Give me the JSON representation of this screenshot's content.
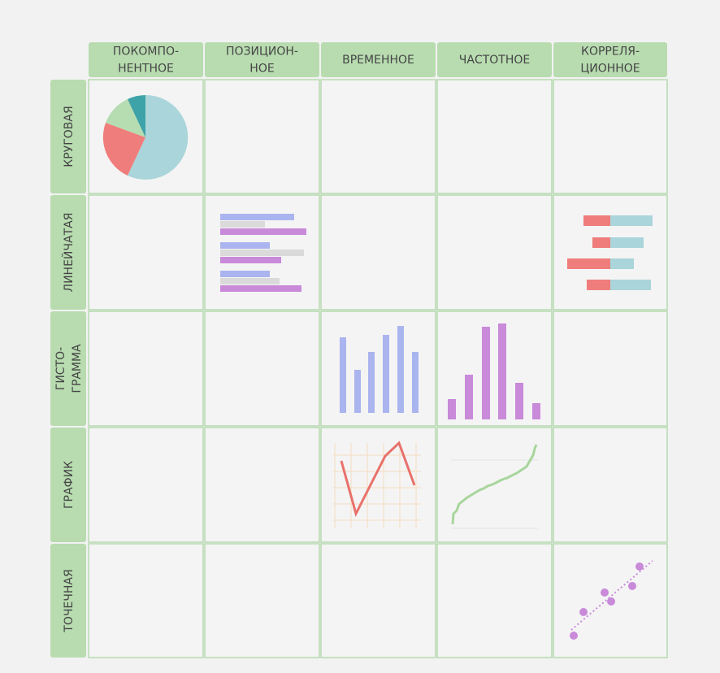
{
  "columns": [
    {
      "lines": [
        "ПОКОМПО-",
        "НЕНТНОЕ"
      ]
    },
    {
      "lines": [
        "ПОЗИЦИОН-",
        "НОЕ"
      ]
    },
    {
      "lines": [
        "ВРЕМЕННОЕ"
      ]
    },
    {
      "lines": [
        "ЧАСТОТНОЕ"
      ]
    },
    {
      "lines": [
        "КОРРЕЛЯ-",
        "ЦИОННОЕ"
      ]
    }
  ],
  "rows": [
    {
      "lines": [
        "КРУГОВАЯ"
      ]
    },
    {
      "lines": [
        "ЛИНЕЙЧАТАЯ"
      ]
    },
    {
      "lines": [
        "ГИСТО-",
        "ГРАММА"
      ]
    },
    {
      "lines": [
        "ГРАФИК"
      ]
    },
    {
      "lines": [
        "ТОЧЕЧНАЯ"
      ]
    }
  ]
}
